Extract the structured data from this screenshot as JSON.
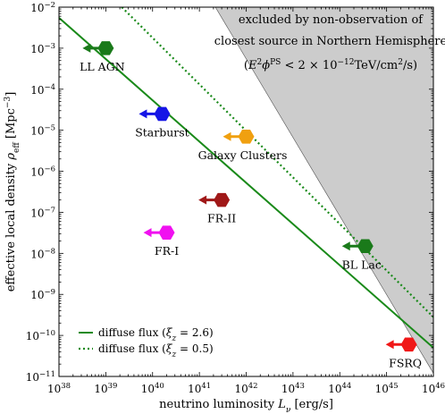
{
  "chart_data": {
    "type": "scatter",
    "xscale": "log",
    "yscale": "log",
    "xlim": [
      1e+38,
      1e+46
    ],
    "ylim": [
      1e-11,
      0.01
    ],
    "xlabel_main": "neutrino luminosity ",
    "xlabel_sym": "L",
    "xlabel_sub": "ν",
    "xlabel_unit": " [erg/s]",
    "ylabel_main": "effective local density ",
    "ylabel_sym": "ρ",
    "ylabel_sub": "eff",
    "ylabel_unit": " [Mpc",
    "ylabel_exp": "−3",
    "ylabel_close": "]",
    "x_ticks": [
      {
        "value": 1e+38,
        "base": "10",
        "exp": "38"
      },
      {
        "value": 1e+39,
        "base": "10",
        "exp": "39"
      },
      {
        "value": 1e+40,
        "base": "10",
        "exp": "40"
      },
      {
        "value": 1e+41,
        "base": "10",
        "exp": "41"
      },
      {
        "value": 1e+42,
        "base": "10",
        "exp": "42"
      },
      {
        "value": 1e+43,
        "base": "10",
        "exp": "43"
      },
      {
        "value": 1e+44,
        "base": "10",
        "exp": "44"
      },
      {
        "value": 1e+45,
        "base": "10",
        "exp": "45"
      },
      {
        "value": 1e+46,
        "base": "10",
        "exp": "46"
      }
    ],
    "y_ticks": [
      {
        "value": 1e-11,
        "base": "10",
        "exp": "−11"
      },
      {
        "value": 1e-10,
        "base": "10",
        "exp": "−10"
      },
      {
        "value": 1e-09,
        "base": "10",
        "exp": "−9"
      },
      {
        "value": 1e-08,
        "base": "10",
        "exp": "−8"
      },
      {
        "value": 1e-07,
        "base": "10",
        "exp": "−7"
      },
      {
        "value": 1e-06,
        "base": "10",
        "exp": "−6"
      },
      {
        "value": 1e-05,
        "base": "10",
        "exp": "−5"
      },
      {
        "value": 0.0001,
        "base": "10",
        "exp": "−4"
      },
      {
        "value": 0.001,
        "base": "10",
        "exp": "−3"
      },
      {
        "value": 0.01,
        "base": "10",
        "exp": "−2"
      }
    ],
    "sources": [
      {
        "name": "LL AGN",
        "luminosity": 1e+39,
        "density": 0.001,
        "color": "#1a7a1a",
        "label_pos": "below-left"
      },
      {
        "name": "Starburst",
        "luminosity": 1.6e+40,
        "density": 2.5e-05,
        "color": "#1515e6",
        "label_pos": "below"
      },
      {
        "name": "Galaxy Clusters",
        "luminosity": 1e+42,
        "density": 7e-06,
        "color": "#f0a010",
        "label_pos": "below-left"
      },
      {
        "name": "FR-II",
        "luminosity": 3e+41,
        "density": 2e-07,
        "color": "#a01818",
        "label_pos": "below"
      },
      {
        "name": "FR-I",
        "luminosity": 2e+40,
        "density": 3.2e-08,
        "color": "#f010f0",
        "label_pos": "below"
      },
      {
        "name": "BL Lac",
        "luminosity": 3.5e+44,
        "density": 1.5e-08,
        "color": "#1a7a1a",
        "label_pos": "below-left"
      },
      {
        "name": "FSRQ",
        "luminosity": 3e+45,
        "density": 6e-11,
        "color": "#f01818",
        "label_pos": "below-left"
      }
    ],
    "excluded_region": {
      "boundary": [
        [
          2.2e+41,
          0.01
        ],
        [
          1e+46,
          1.2e-11
        ]
      ],
      "color": "#cccccc",
      "label_line1": "excluded by non-observation of",
      "label_line2": "closest source in Northern Hemisphere",
      "label_line3_prefix": "(",
      "label_line3_E": "E",
      "label_line3_2": "2",
      "label_line3_phi": "ϕ",
      "label_line3_PS": "PS",
      "label_line3_mid": " < 2 × 10",
      "label_line3_exp": "−12",
      "label_line3_unit": "TeV/cm",
      "label_line3_unit_exp": "2",
      "label_line3_suffix": "/s)"
    },
    "lines": [
      {
        "name_prefix": "diffuse flux (",
        "sym": "ξ",
        "sub": "z",
        "name_suffix": " = 2.6)",
        "style": "solid",
        "color": "#1a8a1a",
        "points": [
          [
            1e+38,
            0.0055
          ],
          [
            1e+46,
            5e-11
          ]
        ]
      },
      {
        "name_prefix": "diffuse flux (",
        "sym": "ξ",
        "sub": "z",
        "name_suffix": " = 0.5)",
        "style": "dotted",
        "color": "#1a8a1a",
        "points": [
          [
            2.2e+39,
            0.01
          ],
          [
            1e+46,
            2.8e-10
          ]
        ]
      }
    ],
    "legend_position": "lower-left"
  }
}
